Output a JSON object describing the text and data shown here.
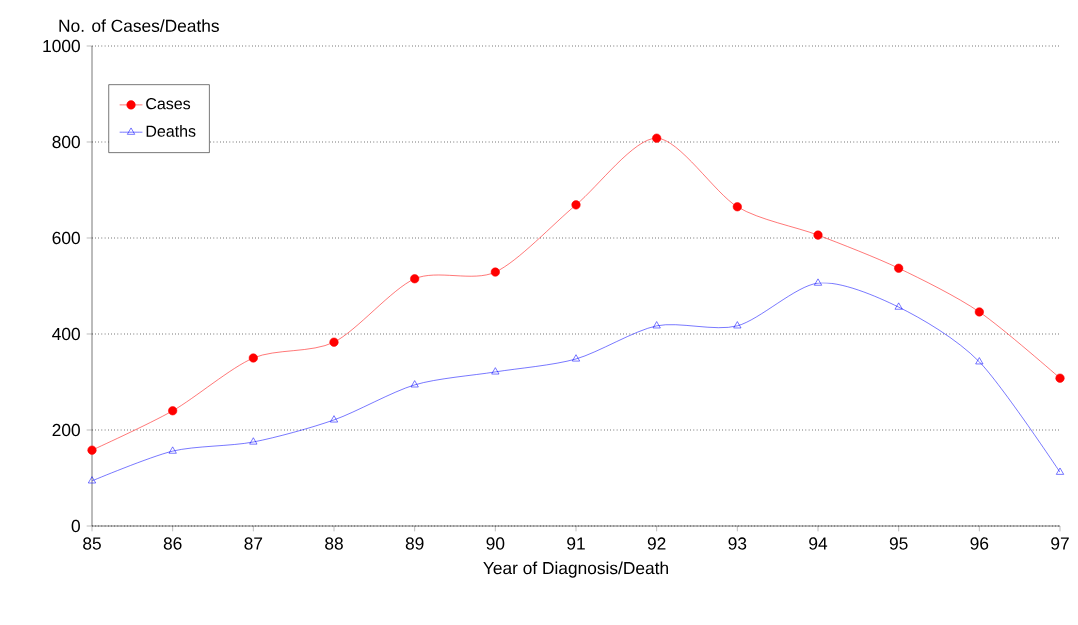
{
  "chart_data": {
    "type": "line",
    "xlabel": "Year of Diagnosis/Death",
    "ylabel": "No. of Cases/Deaths",
    "x": [
      85,
      86,
      87,
      88,
      89,
      90,
      91,
      92,
      93,
      94,
      95,
      96,
      97
    ],
    "series": [
      {
        "name": "Cases",
        "color": "#ff0000",
        "marker": "circle",
        "values": [
          158,
          240,
          350,
          383,
          515,
          529,
          669,
          808,
          665,
          606,
          537,
          446,
          308
        ]
      },
      {
        "name": "Deaths",
        "color": "#0000ff",
        "marker": "triangle",
        "values": [
          94,
          156,
          175,
          221,
          294,
          321,
          348,
          417,
          417,
          506,
          456,
          342,
          112
        ]
      }
    ],
    "xlim": [
      85,
      97
    ],
    "xticks": [
      85,
      86,
      87,
      88,
      89,
      90,
      91,
      92,
      93,
      94,
      95,
      96,
      97
    ],
    "ylim": [
      0,
      1000
    ],
    "yticks": [
      0,
      200,
      400,
      600,
      800,
      1000
    ],
    "grid": "y",
    "legend": "top left"
  }
}
